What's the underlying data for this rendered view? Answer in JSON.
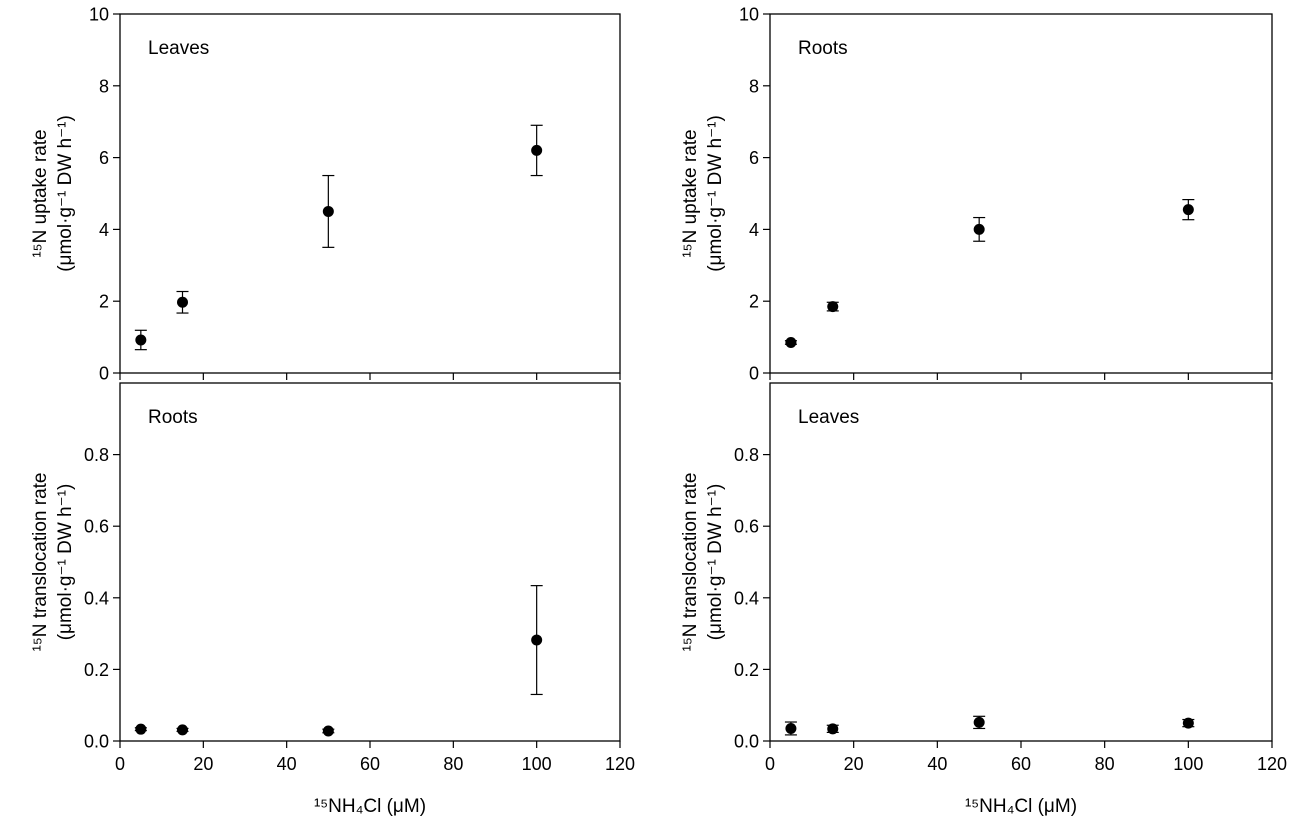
{
  "chart_data": [
    {
      "type": "scatter",
      "panel_label": "Leaves",
      "ylabel": [
        "¹⁵N uptake rate",
        "(μmol·g⁻¹ DW h⁻¹)"
      ],
      "xlabel": "",
      "xlim": [
        0,
        120
      ],
      "ylim": [
        0,
        10
      ],
      "xticks": [
        0,
        20,
        40,
        60,
        80,
        100,
        120
      ],
      "yticks": [
        0,
        2,
        4,
        6,
        8,
        10
      ],
      "xtick_labels": [],
      "ytick_labels": [
        "0",
        "2",
        "4",
        "6",
        "8",
        "10"
      ],
      "series": [
        {
          "x": [
            5,
            15,
            50,
            100
          ],
          "y": [
            0.92,
            1.97,
            4.5,
            6.2
          ],
          "err": [
            0.27,
            0.3,
            1.0,
            0.7
          ]
        }
      ]
    },
    {
      "type": "scatter",
      "panel_label": "Roots",
      "ylabel": [
        "¹⁵N uptake rate",
        "(μmol·g⁻¹ DW h⁻¹)"
      ],
      "xlabel": "",
      "xlim": [
        0,
        120
      ],
      "ylim": [
        0,
        10
      ],
      "xticks": [
        0,
        20,
        40,
        60,
        80,
        100,
        120
      ],
      "yticks": [
        0,
        2,
        4,
        6,
        8,
        10
      ],
      "xtick_labels": [],
      "ytick_labels": [
        "0",
        "2",
        "4",
        "6",
        "8",
        "10"
      ],
      "series": [
        {
          "x": [
            5,
            15,
            50,
            100
          ],
          "y": [
            0.85,
            1.85,
            4.0,
            4.55
          ],
          "err": [
            0.05,
            0.12,
            0.33,
            0.28
          ]
        }
      ]
    },
    {
      "type": "scatter",
      "panel_label": "Roots",
      "ylabel": [
        "¹⁵N translocation rate",
        "(μmol·g⁻¹ DW h⁻¹)"
      ],
      "xlabel": "¹⁵NH₄Cl (μM)",
      "xlim": [
        0,
        120
      ],
      "ylim": [
        0,
        1.0
      ],
      "xticks": [
        0,
        20,
        40,
        60,
        80,
        100,
        120
      ],
      "yticks": [
        0.0,
        0.2,
        0.4,
        0.6,
        0.8
      ],
      "xtick_labels": [
        "0",
        "20",
        "40",
        "60",
        "80",
        "100",
        "120"
      ],
      "ytick_labels": [
        "0.0",
        "0.2",
        "0.4",
        "0.6",
        "0.8"
      ],
      "series": [
        {
          "x": [
            5,
            15,
            50,
            100
          ],
          "y": [
            0.033,
            0.031,
            0.028,
            0.282
          ],
          "err": [
            0.004,
            0.004,
            0.005,
            0.152
          ]
        }
      ]
    },
    {
      "type": "scatter",
      "panel_label": "Leaves",
      "ylabel": [
        "¹⁵N translocation rate",
        "(μmol·g⁻¹ DW h⁻¹)"
      ],
      "xlabel": "¹⁵NH₄Cl (μM)",
      "xlim": [
        0,
        120
      ],
      "ylim": [
        0,
        1.0
      ],
      "xticks": [
        0,
        20,
        40,
        60,
        80,
        100,
        120
      ],
      "yticks": [
        0.0,
        0.2,
        0.4,
        0.6,
        0.8
      ],
      "xtick_labels": [
        "0",
        "20",
        "40",
        "60",
        "80",
        "100",
        "120"
      ],
      "ytick_labels": [
        "0.0",
        "0.2",
        "0.4",
        "0.6",
        "0.8"
      ],
      "series": [
        {
          "x": [
            5,
            15,
            50,
            100
          ],
          "y": [
            0.035,
            0.034,
            0.052,
            0.05
          ],
          "err": [
            0.018,
            0.01,
            0.017,
            0.01
          ]
        }
      ]
    }
  ]
}
